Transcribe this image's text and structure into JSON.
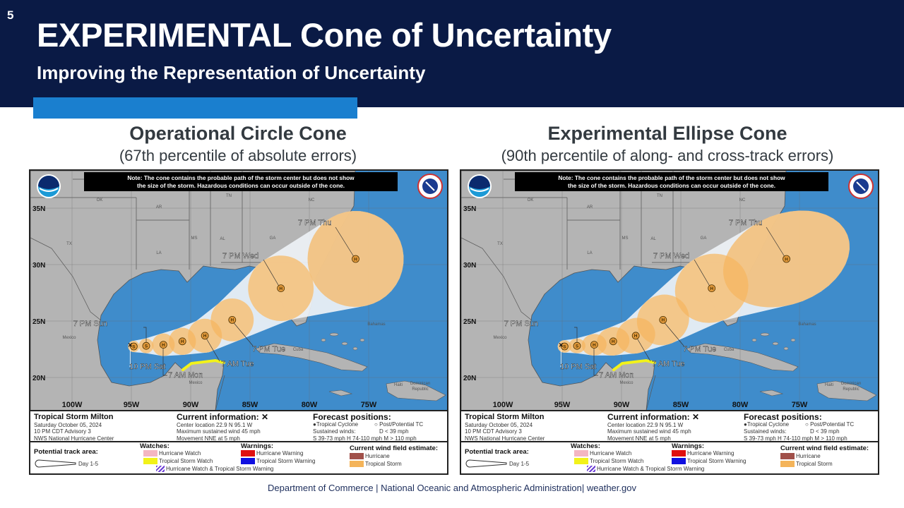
{
  "slide_number": "5",
  "header": {
    "title": "EXPERIMENTAL Cone of Uncertainty",
    "subtitle": "Improving the Representation of Uncertainty"
  },
  "panels": [
    {
      "title": "Operational Circle Cone",
      "subtitle": "(67th percentile of absolute errors)",
      "cone_shape": "circle",
      "cone_sizes_deg": [
        [
          0.5,
          0.5
        ],
        [
          0.65,
          0.65
        ],
        [
          1.0,
          1.0
        ],
        [
          1.2,
          1.2
        ],
        [
          1.5,
          1.5
        ],
        [
          1.9,
          1.9
        ],
        [
          2.9,
          2.9
        ],
        [
          4.25,
          4.25
        ]
      ]
    },
    {
      "title": "Experimental Ellipse Cone",
      "subtitle": "(90th percentile of along- and cross-track errors)",
      "cone_shape": "ellipse",
      "cone_sizes_deg": [
        [
          0.6,
          0.55
        ],
        [
          0.75,
          0.65
        ],
        [
          1.1,
          0.95
        ],
        [
          1.45,
          1.25
        ],
        [
          1.75,
          1.55
        ],
        [
          2.35,
          2.2
        ],
        [
          3.3,
          3.0
        ],
        [
          5.8,
          4.0
        ]
      ]
    }
  ],
  "map": {
    "note_line1": "Note: The cone contains the probable path of the storm center but does not show",
    "note_line2": "the size of the storm. Hazardous conditions can occur outside of the cone.",
    "lat_labels": [
      "35N",
      "30N",
      "25N",
      "20N"
    ],
    "lon_labels": [
      "100W",
      "95W",
      "90W",
      "85W",
      "80W",
      "75W"
    ],
    "place_labels": [
      "OK",
      "AR",
      "TN",
      "NC",
      "TX",
      "LA",
      "MS",
      "AL",
      "GA",
      "Mexico",
      "Mexico",
      "Bahamas",
      "Cuba",
      "Haiti",
      "Dominican",
      "Republic"
    ],
    "current_position": {
      "lat": 22.9,
      "lon": 95.1,
      "marker": "x"
    },
    "forecast_points": [
      {
        "type": "S",
        "lat": 22.75,
        "lon": 94.8,
        "label": ""
      },
      {
        "type": "S",
        "lat": 22.8,
        "lon": 93.75,
        "label": "7 PM Sun"
      },
      {
        "type": "H",
        "lat": 22.9,
        "lon": 92.3,
        "label": "7 AM Mon"
      },
      {
        "type": "H",
        "lat": 23.2,
        "lon": 90.7,
        "label": ""
      },
      {
        "type": "H",
        "lat": 23.7,
        "lon": 88.8,
        "label": "7 AM Tue"
      },
      {
        "type": "H",
        "lat": 25.1,
        "lon": 86.5,
        "label": "7 PM Tue"
      },
      {
        "type": "H",
        "lat": 27.9,
        "lon": 82.4,
        "label": "7 PM Wed"
      },
      {
        "type": "H",
        "lat": 30.5,
        "lon": 76.1,
        "label": "7 PM Thu"
      }
    ],
    "current_label": "10 PM Sat",
    "colors": {
      "ocean": "#3f8ccb",
      "land": "#b4b4b4",
      "cone": "#eef2f6",
      "forecast_circle": "#f5b560",
      "ts_watch": "#f2f21a"
    }
  },
  "legend": {
    "storm_name": "Tropical Storm Milton",
    "date": "Saturday October 05, 2024",
    "advisory": "10 PM CDT Advisory 3",
    "center": "NWS National Hurricane Center",
    "current_title": "Current information: ✕",
    "center_location": "Center location 22.9 N 95.1 W",
    "max_wind": "Maximum sustained wind 45 mph",
    "movement": "Movement NNE at 5 mph",
    "forecast_title": "Forecast positions:",
    "tc": "Tropical Cyclone",
    "post_tc": "Post/Potential TC",
    "sustained": "Sustained winds:",
    "d": "D < 39 mph",
    "shm": "S 39-73 mph  H 74-110 mph  M > 110 mph",
    "track_title": "Potential track area:",
    "day": "Day 1-5",
    "watches": "Watches:",
    "hurricane_watch": "Hurricane Watch",
    "ts_watch": "Tropical Storm Watch",
    "hw_tsw": "Hurricane Watch & Tropical Storm Warning",
    "warnings": "Warnings:",
    "hurricane_warning": "Hurricane Warning",
    "ts_warning": "Tropical Storm Warning",
    "wind_title": "Current wind field estimate:",
    "wind_hurricane": "Hurricane",
    "wind_ts": "Tropical Storm"
  },
  "footer": "Department of Commerce | National Oceanic and Atmospheric Administration| weather.gov"
}
